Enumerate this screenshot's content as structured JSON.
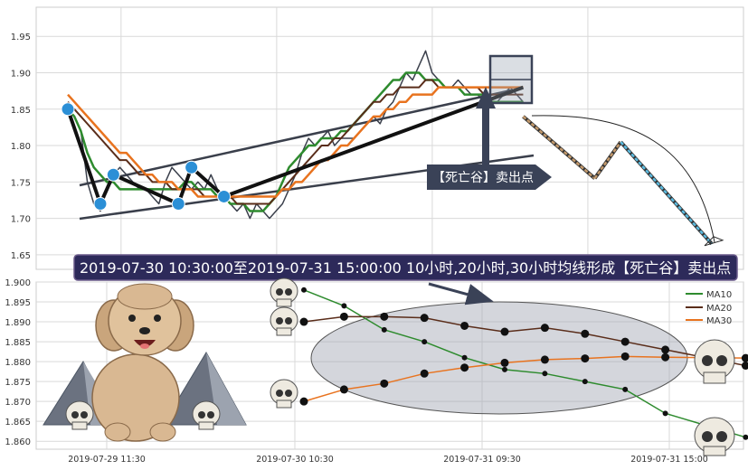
{
  "top_panel": {
    "y_ticks": [
      "1.95",
      "1.90",
      "1.85",
      "1.80",
      "1.75",
      "1.70",
      "1.65"
    ],
    "callout_label": "【死亡谷】卖出点"
  },
  "banner": {
    "text": "2019-07-30 10:30:00至2019-07-31 15:00:00 10小时,20小时,30小时均线形成【死亡谷】卖出点"
  },
  "bottom_panel": {
    "y_ticks": [
      "1.900",
      "1.895",
      "1.890",
      "1.885",
      "1.880",
      "1.875",
      "1.870",
      "1.865",
      "1.860"
    ],
    "x_ticks": [
      "2019-07-29 11:30",
      "2019-07-30 10:30",
      "2019-07-31 09:30",
      "2019-07-31 15:00"
    ],
    "legend": [
      "MA10",
      "MA20",
      "MA30"
    ]
  },
  "colors": {
    "ma10": "#2e8b2e",
    "ma20": "#5a2d1a",
    "ma30": "#e8731f",
    "price": "#3a3f4b",
    "pivot": "#2b8fd6",
    "banner_bg": "#2d2a5a",
    "callout_bg": "#3a4257"
  },
  "chart_data": [
    {
      "type": "line",
      "panel": "top",
      "ylim": [
        1.63,
        1.99
      ],
      "y_ticks": [
        1.95,
        1.9,
        1.85,
        1.8,
        1.75,
        1.7,
        1.65
      ],
      "series": [
        {
          "name": "price",
          "values": [
            1.85,
            1.84,
            1.82,
            1.75,
            1.72,
            1.71,
            1.74,
            1.76,
            1.77,
            1.76,
            1.75,
            1.74,
            1.74,
            1.73,
            1.72,
            1.75,
            1.77,
            1.76,
            1.75,
            1.74,
            1.75,
            1.74,
            1.76,
            1.74,
            1.73,
            1.72,
            1.71,
            1.72,
            1.7,
            1.72,
            1.71,
            1.7,
            1.71,
            1.72,
            1.74,
            1.76,
            1.79,
            1.81,
            1.8,
            1.81,
            1.82,
            1.8,
            1.81,
            1.81,
            1.81,
            1.82,
            1.83,
            1.84,
            1.83,
            1.85,
            1.86,
            1.88,
            1.9,
            1.89,
            1.91,
            1.93,
            1.9,
            1.89,
            1.88,
            1.88,
            1.89,
            1.88,
            1.87,
            1.87,
            1.86,
            1.86,
            1.86,
            1.87,
            1.88,
            1.87,
            1.86
          ]
        },
        {
          "name": "MA10",
          "values": [
            1.85,
            1.84,
            1.82,
            1.79,
            1.77,
            1.76,
            1.75,
            1.75,
            1.74,
            1.74,
            1.74,
            1.74,
            1.74,
            1.74,
            1.74,
            1.74,
            1.74,
            1.74,
            1.75,
            1.75,
            1.74,
            1.74,
            1.74,
            1.73,
            1.73,
            1.72,
            1.72,
            1.72,
            1.71,
            1.71,
            1.71,
            1.72,
            1.73,
            1.75,
            1.77,
            1.78,
            1.79,
            1.8,
            1.8,
            1.81,
            1.81,
            1.81,
            1.82,
            1.82,
            1.83,
            1.84,
            1.85,
            1.86,
            1.87,
            1.88,
            1.89,
            1.89,
            1.9,
            1.9,
            1.9,
            1.89,
            1.89,
            1.89,
            1.88,
            1.88,
            1.88,
            1.87,
            1.87,
            1.87,
            1.87,
            1.86,
            1.86,
            1.86,
            1.86,
            1.86,
            1.86
          ]
        },
        {
          "name": "MA20",
          "values": [
            1.86,
            1.85,
            1.84,
            1.83,
            1.82,
            1.81,
            1.8,
            1.79,
            1.78,
            1.78,
            1.77,
            1.76,
            1.76,
            1.75,
            1.75,
            1.75,
            1.74,
            1.74,
            1.74,
            1.74,
            1.74,
            1.73,
            1.73,
            1.73,
            1.73,
            1.73,
            1.72,
            1.72,
            1.72,
            1.72,
            1.72,
            1.72,
            1.73,
            1.74,
            1.75,
            1.76,
            1.77,
            1.78,
            1.79,
            1.8,
            1.8,
            1.81,
            1.81,
            1.82,
            1.83,
            1.84,
            1.85,
            1.86,
            1.86,
            1.87,
            1.87,
            1.88,
            1.88,
            1.88,
            1.88,
            1.89,
            1.89,
            1.88,
            1.88,
            1.88,
            1.88,
            1.88,
            1.88,
            1.88,
            1.87,
            1.87,
            1.87,
            1.87,
            1.87,
            1.87,
            1.87
          ]
        },
        {
          "name": "MA30",
          "values": [
            1.87,
            1.86,
            1.85,
            1.84,
            1.83,
            1.82,
            1.81,
            1.8,
            1.79,
            1.79,
            1.78,
            1.77,
            1.76,
            1.76,
            1.75,
            1.75,
            1.75,
            1.74,
            1.74,
            1.74,
            1.73,
            1.73,
            1.73,
            1.73,
            1.73,
            1.73,
            1.73,
            1.73,
            1.73,
            1.73,
            1.73,
            1.73,
            1.73,
            1.74,
            1.74,
            1.75,
            1.75,
            1.76,
            1.77,
            1.78,
            1.78,
            1.79,
            1.8,
            1.8,
            1.81,
            1.82,
            1.83,
            1.84,
            1.84,
            1.85,
            1.85,
            1.86,
            1.86,
            1.87,
            1.87,
            1.87,
            1.87,
            1.88,
            1.88,
            1.88,
            1.88,
            1.88,
            1.88,
            1.88,
            1.88,
            1.88,
            1.88,
            1.88,
            1.88,
            1.88,
            1.88
          ]
        }
      ],
      "pivots": [
        [
          0,
          1.85
        ],
        [
          5,
          1.72
        ],
        [
          7,
          1.76
        ],
        [
          17,
          1.72
        ],
        [
          19,
          1.77
        ],
        [
          24,
          1.73
        ]
      ],
      "projection": [
        [
          70,
          1.84
        ],
        [
          81,
          1.755
        ],
        [
          85,
          1.805
        ],
        [
          99,
          1.665
        ]
      ]
    },
    {
      "type": "line",
      "panel": "bottom",
      "ylim": [
        1.858,
        1.9
      ],
      "y_ticks": [
        1.9,
        1.895,
        1.89,
        1.885,
        1.88,
        1.875,
        1.87,
        1.865,
        1.86
      ],
      "x_ticks": [
        "2019-07-29 11:30",
        "2019-07-30 10:30",
        "2019-07-31 09:30",
        "2019-07-31 15:00"
      ],
      "series": [
        {
          "name": "MA10",
          "values": [
            1.898,
            1.894,
            1.888,
            1.885,
            1.881,
            1.878,
            1.877,
            1.875,
            1.873,
            1.867,
            1.864,
            1.861
          ]
        },
        {
          "name": "MA20",
          "values": [
            1.89,
            1.8913,
            1.8913,
            1.891,
            1.889,
            1.8875,
            1.8885,
            1.887,
            1.885,
            1.883,
            1.881,
            1.879
          ]
        },
        {
          "name": "MA30",
          "values": [
            1.87,
            1.873,
            1.8745,
            1.877,
            1.8785,
            1.8797,
            1.8805,
            1.8808,
            1.8813,
            1.8811,
            1.881,
            1.8809
          ]
        }
      ]
    }
  ]
}
